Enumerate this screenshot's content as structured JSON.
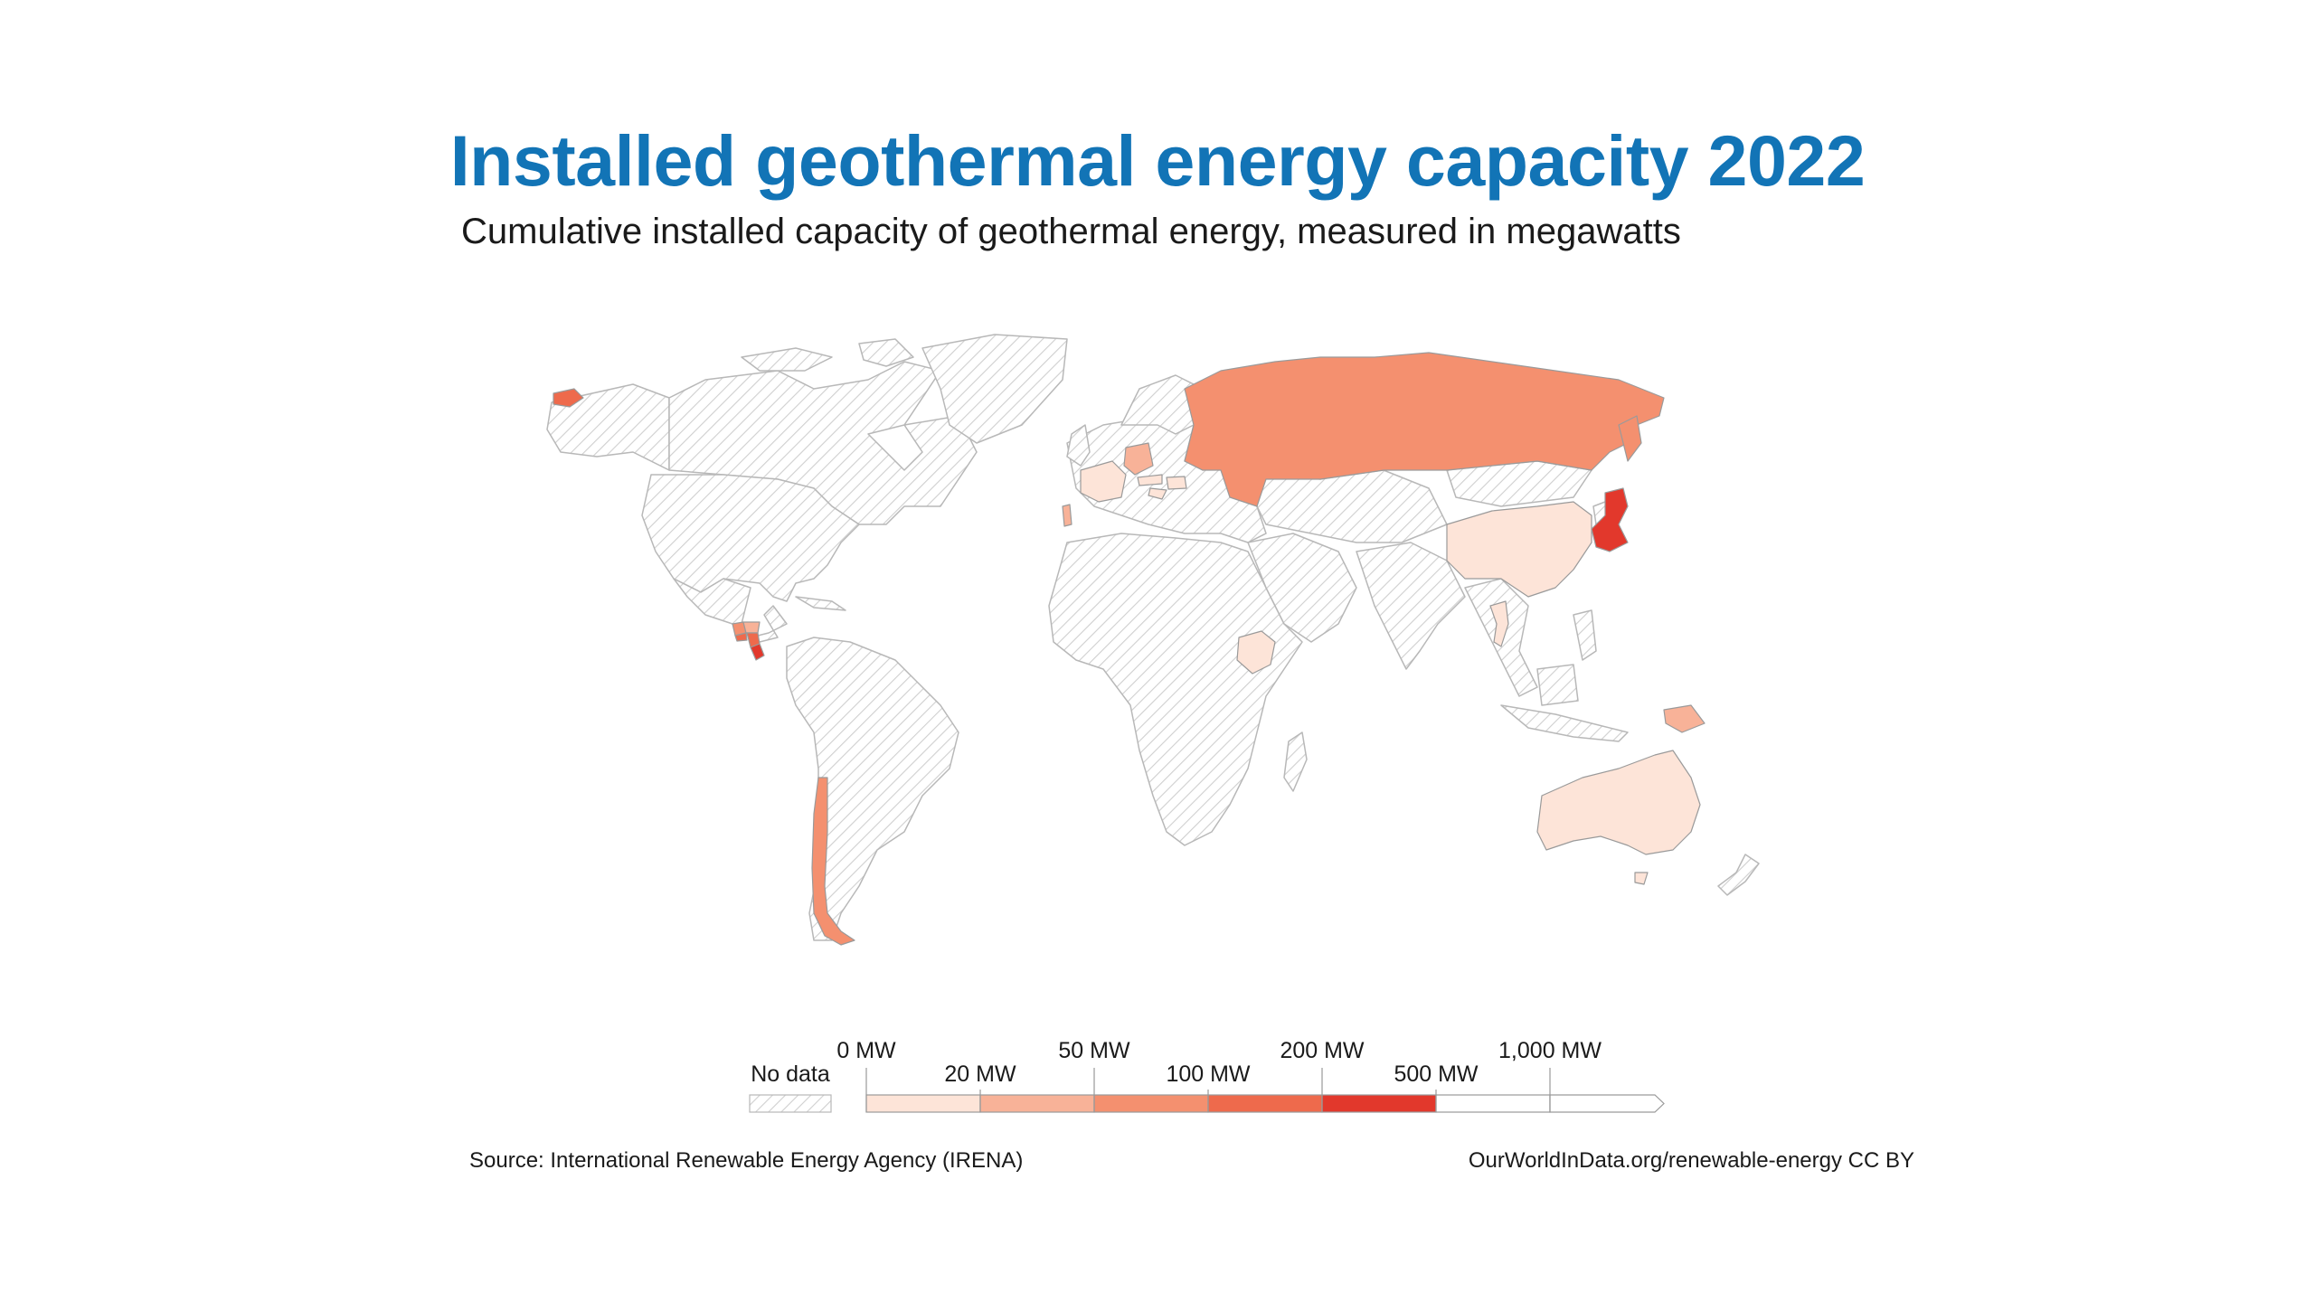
{
  "header": {
    "title": "Installed geothermal energy capacity 2022",
    "subtitle": "Cumulative installed capacity of geothermal energy, measured in megawatts"
  },
  "legend": {
    "no_data_label": "No data",
    "ticks_upper": [
      "0 MW",
      "50 MW",
      "200 MW",
      "1,000 MW"
    ],
    "ticks_lower": [
      "20 MW",
      "100 MW",
      "500 MW"
    ],
    "bins": [
      {
        "range": "0–20 MW",
        "color": "#fde4d8"
      },
      {
        "range": "20–50 MW",
        "color": "#f8b298"
      },
      {
        "range": "50–100 MW",
        "color": "#f4906f"
      },
      {
        "range": "100–200 MW",
        "color": "#ee6a4c"
      },
      {
        "range": "200–500 MW",
        "color": "#e2382c"
      },
      {
        "range": "500–1,000 MW",
        "color": "#ffffff"
      },
      {
        "range": ">1,000 MW",
        "color": "#ffffff"
      }
    ]
  },
  "map_data": {
    "no_data_color": "#d8d8d8",
    "countries": [
      {
        "name": "Iceland",
        "bin": "100–200 MW"
      },
      {
        "name": "Russia",
        "bin": "50–100 MW"
      },
      {
        "name": "Japan",
        "bin": "200–500 MW"
      },
      {
        "name": "Chile",
        "bin": "50–100 MW"
      },
      {
        "name": "Costa Rica",
        "bin": "200–500 MW"
      },
      {
        "name": "Nicaragua",
        "bin": "100–200 MW"
      },
      {
        "name": "El Salvador",
        "bin": "100–200 MW"
      },
      {
        "name": "Guatemala",
        "bin": "50–100 MW"
      },
      {
        "name": "Honduras",
        "bin": "20–50 MW"
      },
      {
        "name": "Germany",
        "bin": "20–50 MW"
      },
      {
        "name": "Portugal",
        "bin": "20–50 MW"
      },
      {
        "name": "France",
        "bin": "0–20 MW"
      },
      {
        "name": "Austria",
        "bin": "0–20 MW"
      },
      {
        "name": "Hungary",
        "bin": "0–20 MW"
      },
      {
        "name": "Croatia",
        "bin": "0–20 MW"
      },
      {
        "name": "Ethiopia",
        "bin": "0–20 MW"
      },
      {
        "name": "Thailand",
        "bin": "0–20 MW"
      },
      {
        "name": "Australia",
        "bin": "0–20 MW"
      },
      {
        "name": "Papua New Guinea",
        "bin": "20–50 MW"
      },
      {
        "name": "China",
        "bin": "0–20 MW"
      }
    ]
  },
  "footer": {
    "source": "Source: International Renewable Energy Agency (IRENA)",
    "credit": "OurWorldInData.org/renewable-energy CC BY"
  }
}
